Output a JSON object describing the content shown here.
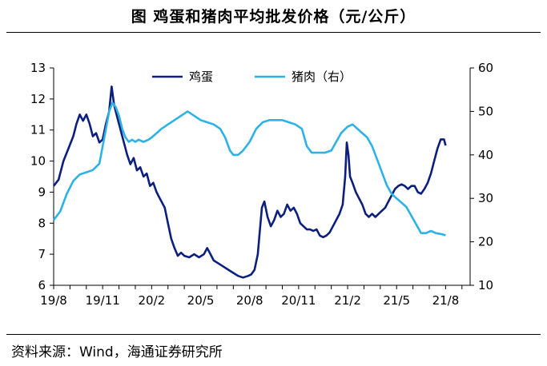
{
  "title": "图  鸡蛋和猪肉平均批发价格（元/公斤）",
  "source": "资料来源：Wind，海通证券研究所",
  "chart_data": {
    "type": "line",
    "title": "鸡蛋和猪肉平均批发价格（元/公斤）",
    "x_ticks": [
      "19/8",
      "19/11",
      "20/2",
      "20/5",
      "20/8",
      "20/11",
      "21/2",
      "21/5",
      "21/8"
    ],
    "x_range": [
      0,
      25.5
    ],
    "y_left": {
      "range": [
        6,
        13
      ],
      "ticks": [
        6,
        7,
        8,
        9,
        10,
        11,
        12,
        13
      ]
    },
    "y_right": {
      "range": [
        10,
        60
      ],
      "ticks": [
        10,
        20,
        30,
        40,
        50,
        60
      ]
    },
    "series": [
      {
        "name": "鸡蛋",
        "axis": "left",
        "color": "#0c1f7e",
        "points": [
          [
            0,
            9.2
          ],
          [
            0.3,
            9.4
          ],
          [
            0.6,
            10.0
          ],
          [
            0.9,
            10.4
          ],
          [
            1.2,
            10.8
          ],
          [
            1.4,
            11.2
          ],
          [
            1.6,
            11.5
          ],
          [
            1.8,
            11.3
          ],
          [
            2.0,
            11.5
          ],
          [
            2.2,
            11.2
          ],
          [
            2.4,
            10.8
          ],
          [
            2.6,
            10.9
          ],
          [
            2.8,
            10.6
          ],
          [
            3.0,
            10.7
          ],
          [
            3.2,
            11.2
          ],
          [
            3.4,
            11.6
          ],
          [
            3.55,
            12.4
          ],
          [
            3.7,
            11.8
          ],
          [
            3.9,
            11.4
          ],
          [
            4.1,
            11.0
          ],
          [
            4.3,
            10.6
          ],
          [
            4.5,
            10.2
          ],
          [
            4.7,
            9.9
          ],
          [
            4.9,
            10.1
          ],
          [
            5.1,
            9.7
          ],
          [
            5.3,
            9.8
          ],
          [
            5.5,
            9.5
          ],
          [
            5.7,
            9.6
          ],
          [
            5.9,
            9.2
          ],
          [
            6.1,
            9.3
          ],
          [
            6.3,
            9.0
          ],
          [
            6.5,
            8.8
          ],
          [
            6.8,
            8.5
          ],
          [
            7.0,
            8.0
          ],
          [
            7.2,
            7.5
          ],
          [
            7.4,
            7.2
          ],
          [
            7.6,
            6.95
          ],
          [
            7.8,
            7.05
          ],
          [
            8.0,
            6.95
          ],
          [
            8.3,
            6.9
          ],
          [
            8.6,
            7.0
          ],
          [
            8.9,
            6.9
          ],
          [
            9.2,
            7.0
          ],
          [
            9.4,
            7.2
          ],
          [
            9.6,
            7.0
          ],
          [
            9.8,
            6.8
          ],
          [
            10.1,
            6.7
          ],
          [
            10.4,
            6.6
          ],
          [
            10.7,
            6.5
          ],
          [
            11.0,
            6.4
          ],
          [
            11.3,
            6.3
          ],
          [
            11.6,
            6.25
          ],
          [
            11.9,
            6.3
          ],
          [
            12.1,
            6.35
          ],
          [
            12.3,
            6.5
          ],
          [
            12.5,
            7.0
          ],
          [
            12.6,
            7.6
          ],
          [
            12.75,
            8.5
          ],
          [
            12.9,
            8.7
          ],
          [
            13.1,
            8.2
          ],
          [
            13.3,
            7.9
          ],
          [
            13.5,
            8.1
          ],
          [
            13.7,
            8.4
          ],
          [
            13.9,
            8.2
          ],
          [
            14.1,
            8.3
          ],
          [
            14.3,
            8.6
          ],
          [
            14.5,
            8.4
          ],
          [
            14.7,
            8.5
          ],
          [
            14.9,
            8.3
          ],
          [
            15.1,
            8.0
          ],
          [
            15.3,
            7.9
          ],
          [
            15.5,
            7.8
          ],
          [
            15.7,
            7.8
          ],
          [
            15.9,
            7.75
          ],
          [
            16.1,
            7.8
          ],
          [
            16.3,
            7.6
          ],
          [
            16.5,
            7.55
          ],
          [
            16.7,
            7.6
          ],
          [
            16.9,
            7.7
          ],
          [
            17.1,
            7.9
          ],
          [
            17.3,
            8.1
          ],
          [
            17.5,
            8.3
          ],
          [
            17.7,
            8.6
          ],
          [
            17.85,
            9.5
          ],
          [
            17.95,
            10.6
          ],
          [
            18.05,
            10.2
          ],
          [
            18.15,
            9.5
          ],
          [
            18.3,
            9.3
          ],
          [
            18.5,
            9.0
          ],
          [
            18.7,
            8.8
          ],
          [
            18.9,
            8.6
          ],
          [
            19.1,
            8.3
          ],
          [
            19.3,
            8.2
          ],
          [
            19.5,
            8.3
          ],
          [
            19.7,
            8.2
          ],
          [
            19.9,
            8.3
          ],
          [
            20.1,
            8.4
          ],
          [
            20.3,
            8.5
          ],
          [
            20.5,
            8.7
          ],
          [
            20.7,
            8.9
          ],
          [
            20.9,
            9.1
          ],
          [
            21.1,
            9.2
          ],
          [
            21.3,
            9.25
          ],
          [
            21.5,
            9.2
          ],
          [
            21.7,
            9.1
          ],
          [
            21.9,
            9.2
          ],
          [
            22.1,
            9.2
          ],
          [
            22.3,
            9.0
          ],
          [
            22.5,
            8.95
          ],
          [
            22.7,
            9.1
          ],
          [
            22.9,
            9.3
          ],
          [
            23.1,
            9.6
          ],
          [
            23.3,
            10.0
          ],
          [
            23.5,
            10.4
          ],
          [
            23.7,
            10.7
          ],
          [
            23.9,
            10.7
          ],
          [
            24.0,
            10.5
          ]
        ]
      },
      {
        "name": "猪肉（右）",
        "axis": "right",
        "color": "#2cb2e4",
        "points": [
          [
            0,
            25
          ],
          [
            0.4,
            27
          ],
          [
            0.8,
            31
          ],
          [
            1.2,
            34
          ],
          [
            1.6,
            35.5
          ],
          [
            2.0,
            36
          ],
          [
            2.4,
            36.5
          ],
          [
            2.8,
            38
          ],
          [
            3.0,
            42
          ],
          [
            3.2,
            46
          ],
          [
            3.4,
            50
          ],
          [
            3.6,
            52
          ],
          [
            3.8,
            51
          ],
          [
            4.0,
            49
          ],
          [
            4.2,
            46
          ],
          [
            4.4,
            44
          ],
          [
            4.6,
            43
          ],
          [
            4.8,
            43.5
          ],
          [
            5.0,
            43
          ],
          [
            5.2,
            43.5
          ],
          [
            5.5,
            43
          ],
          [
            5.8,
            43.5
          ],
          [
            6.0,
            44
          ],
          [
            6.3,
            45
          ],
          [
            6.6,
            46
          ],
          [
            7.0,
            47
          ],
          [
            7.4,
            48
          ],
          [
            7.8,
            49
          ],
          [
            8.2,
            50
          ],
          [
            8.6,
            49
          ],
          [
            9.0,
            48
          ],
          [
            9.4,
            47.5
          ],
          [
            9.8,
            47
          ],
          [
            10.2,
            46
          ],
          [
            10.5,
            44
          ],
          [
            10.8,
            41
          ],
          [
            11.0,
            40
          ],
          [
            11.3,
            40
          ],
          [
            11.6,
            41
          ],
          [
            12.0,
            43
          ],
          [
            12.4,
            46
          ],
          [
            12.8,
            47.5
          ],
          [
            13.2,
            48
          ],
          [
            13.6,
            48
          ],
          [
            14.0,
            48
          ],
          [
            14.4,
            47.5
          ],
          [
            14.8,
            47
          ],
          [
            15.2,
            46
          ],
          [
            15.5,
            42
          ],
          [
            15.8,
            40.5
          ],
          [
            16.2,
            40.5
          ],
          [
            16.6,
            40.5
          ],
          [
            17.0,
            41
          ],
          [
            17.3,
            43
          ],
          [
            17.6,
            45
          ],
          [
            18.0,
            46.5
          ],
          [
            18.3,
            47
          ],
          [
            18.6,
            46
          ],
          [
            18.9,
            45
          ],
          [
            19.2,
            44
          ],
          [
            19.5,
            42
          ],
          [
            19.8,
            39
          ],
          [
            20.1,
            36
          ],
          [
            20.4,
            33
          ],
          [
            20.7,
            31
          ],
          [
            21.0,
            30
          ],
          [
            21.3,
            29
          ],
          [
            21.6,
            28
          ],
          [
            21.9,
            26
          ],
          [
            22.2,
            24
          ],
          [
            22.5,
            22
          ],
          [
            22.8,
            22
          ],
          [
            23.1,
            22.5
          ],
          [
            23.4,
            22
          ],
          [
            23.7,
            21.8
          ],
          [
            24.0,
            21.5
          ]
        ]
      }
    ],
    "legend": [
      "鸡蛋",
      "猪肉（右）"
    ],
    "legend_position": "top-center"
  }
}
